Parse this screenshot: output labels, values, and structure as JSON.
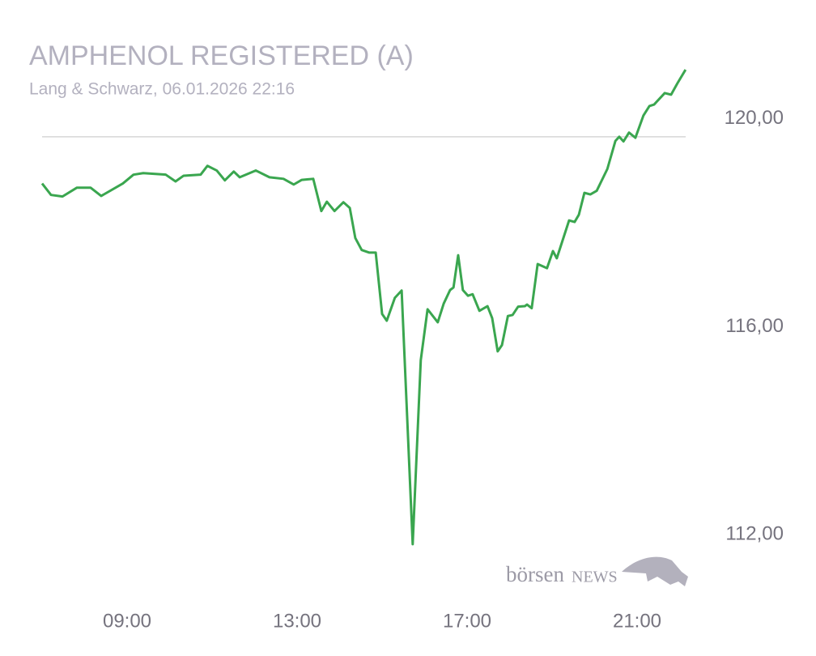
{
  "chart_data": {
    "type": "line",
    "title": "AMPHENOL REGISTERED (A)",
    "subtitle": "Lang & Schwarz, 06.01.2026 22:16",
    "watermark": [
      "börsen",
      "NEWS"
    ],
    "x": [
      7.0,
      7.21,
      7.48,
      7.82,
      8.14,
      8.39,
      8.9,
      9.15,
      9.38,
      9.91,
      10.14,
      10.33,
      10.73,
      10.89,
      11.11,
      11.3,
      11.51,
      11.65,
      12.03,
      12.35,
      12.68,
      12.92,
      13.11,
      13.38,
      13.57,
      13.7,
      13.88,
      14.09,
      14.24,
      14.37,
      14.52,
      14.7,
      14.85,
      15.0,
      15.11,
      15.3,
      15.46,
      15.72,
      15.91,
      16.07,
      16.31,
      16.45,
      16.6,
      16.68,
      16.79,
      16.9,
      17.02,
      17.13,
      17.29,
      17.48,
      17.59,
      17.72,
      17.82,
      17.96,
      18.07,
      18.2,
      18.36,
      18.41,
      18.52,
      18.66,
      18.88,
      19.02,
      19.11,
      19.4,
      19.53,
      19.63,
      19.76,
      19.9,
      20.05,
      20.3,
      20.49,
      20.58,
      20.68,
      20.81,
      20.96,
      21.15,
      21.29,
      21.4,
      21.65,
      21.8,
      21.95,
      22.14
    ],
    "series": [
      {
        "name": "AMPHENOL REGISTERED (A)",
        "color": "#3aa64f",
        "values": [
          119.1,
          118.88,
          118.85,
          119.02,
          119.02,
          118.86,
          119.1,
          119.27,
          119.3,
          119.27,
          119.14,
          119.25,
          119.27,
          119.44,
          119.35,
          119.16,
          119.33,
          119.22,
          119.35,
          119.22,
          119.19,
          119.08,
          119.17,
          119.19,
          118.57,
          118.75,
          118.57,
          118.74,
          118.63,
          118.05,
          117.82,
          117.77,
          117.77,
          116.59,
          116.46,
          116.9,
          117.04,
          112.16,
          115.7,
          116.68,
          116.43,
          116.79,
          117.05,
          117.1,
          117.72,
          117.05,
          116.94,
          116.97,
          116.65,
          116.74,
          116.51,
          115.87,
          115.99,
          116.55,
          116.57,
          116.73,
          116.74,
          116.77,
          116.7,
          117.55,
          117.47,
          117.8,
          117.66,
          118.39,
          118.36,
          118.5,
          118.92,
          118.89,
          118.96,
          119.38,
          119.92,
          120.0,
          119.91,
          120.08,
          119.98,
          120.41,
          120.59,
          120.62,
          120.84,
          120.81,
          121.03,
          121.29
        ]
      }
    ],
    "xlim": [
      7,
      22.2
    ],
    "xticks": [
      {
        "value": 9,
        "label": "09:00"
      },
      {
        "value": 13,
        "label": "13:00"
      },
      {
        "value": 17,
        "label": "17:00"
      },
      {
        "value": 21,
        "label": "21:00"
      }
    ],
    "ylim": [
      111.8,
      121.4
    ],
    "yticks": [
      {
        "value": 112,
        "label": "112,00"
      },
      {
        "value": 116,
        "label": "116,00"
      },
      {
        "value": 120,
        "label": "120,00"
      }
    ],
    "reference_line": 120
  }
}
